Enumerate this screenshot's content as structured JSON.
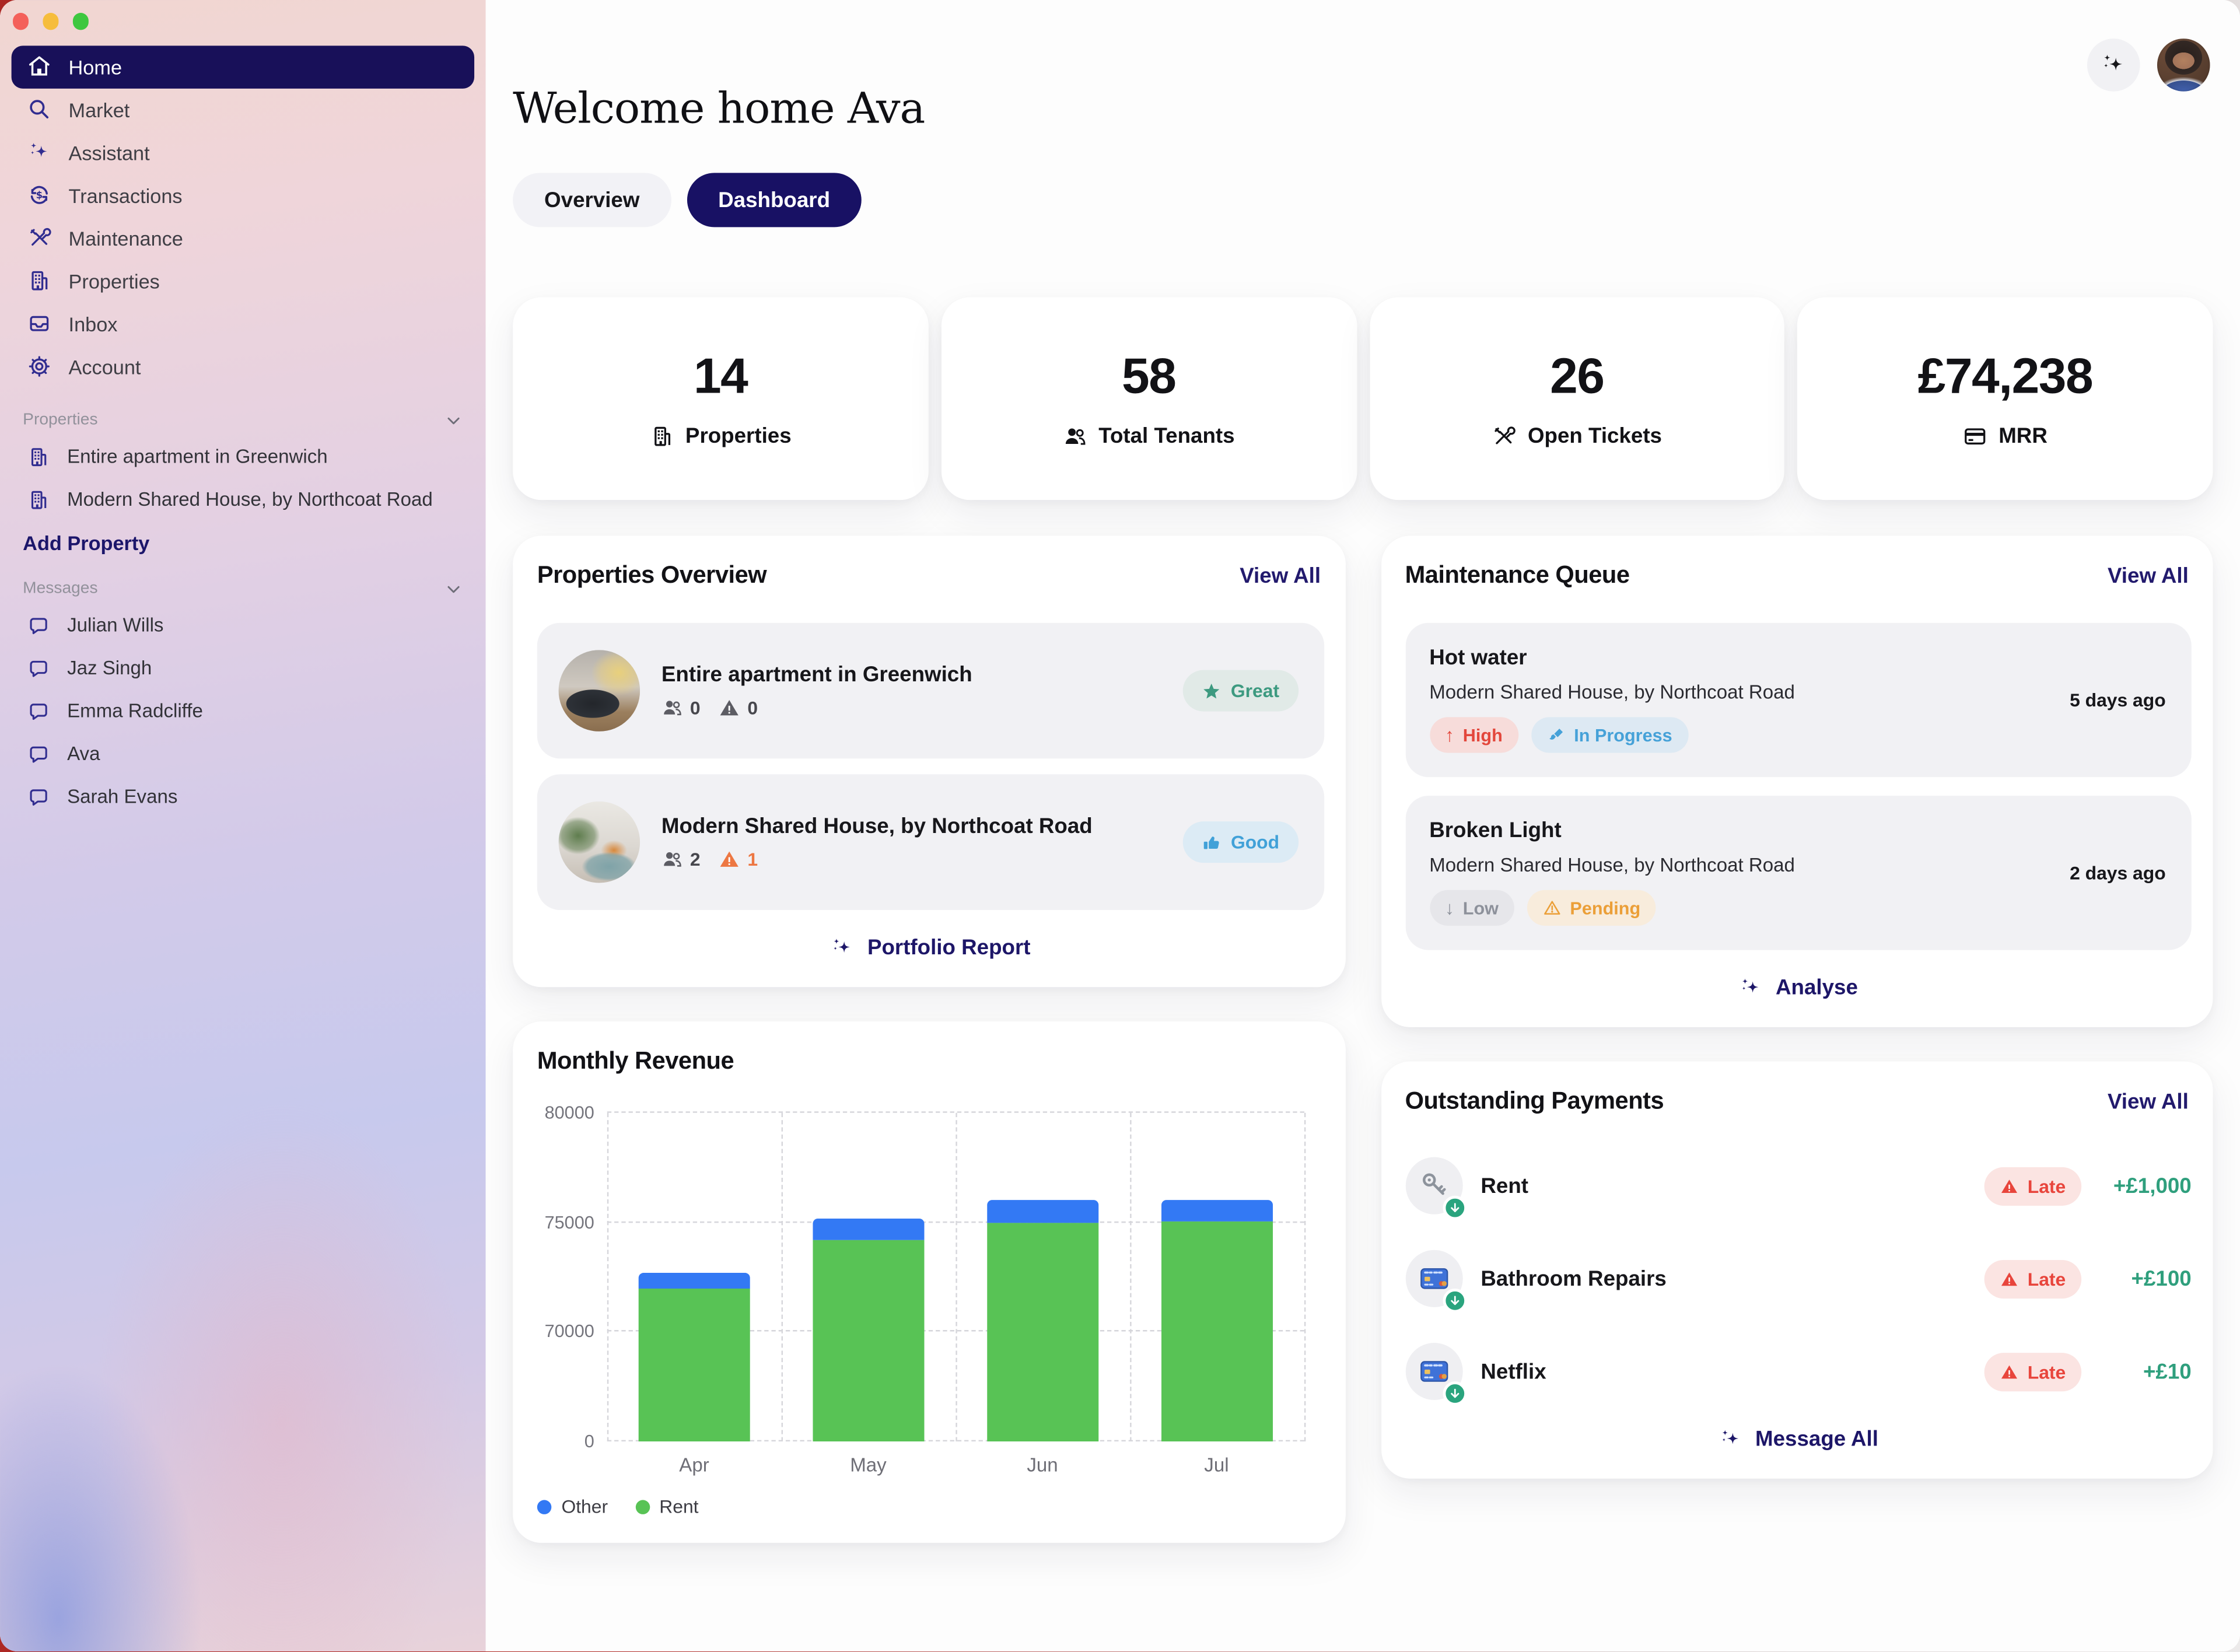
{
  "window": {
    "controls": [
      "close",
      "minimize",
      "zoom"
    ]
  },
  "sidebar": {
    "nav": [
      {
        "label": "Home",
        "icon": "home-icon",
        "active": true
      },
      {
        "label": "Market",
        "icon": "search-icon"
      },
      {
        "label": "Assistant",
        "icon": "sparkles-icon"
      },
      {
        "label": "Transactions",
        "icon": "transactions-icon"
      },
      {
        "label": "Maintenance",
        "icon": "tools-icon"
      },
      {
        "label": "Properties",
        "icon": "building-icon"
      },
      {
        "label": "Inbox",
        "icon": "inbox-icon"
      },
      {
        "label": "Account",
        "icon": "gear-icon"
      }
    ],
    "properties_section": {
      "title": "Properties",
      "items": [
        {
          "label": "Entire apartment in Greenwich",
          "icon": "building-icon"
        },
        {
          "label": "Modern Shared House, by Northcoat Road",
          "icon": "building-icon"
        }
      ],
      "action": "Add Property"
    },
    "messages_section": {
      "title": "Messages",
      "items": [
        {
          "label": "Julian Wills",
          "icon": "chat-icon"
        },
        {
          "label": "Jaz Singh",
          "icon": "chat-icon"
        },
        {
          "label": "Emma Radcliffe",
          "icon": "chat-icon"
        },
        {
          "label": "Ava",
          "icon": "chat-icon"
        },
        {
          "label": "Sarah Evans",
          "icon": "chat-icon"
        }
      ]
    }
  },
  "header": {
    "title": "Welcome home Ava",
    "tabs": [
      {
        "label": "Overview",
        "active": false
      },
      {
        "label": "Dashboard",
        "active": true
      }
    ]
  },
  "stats": [
    {
      "value": "14",
      "label": "Properties",
      "icon": "building-icon"
    },
    {
      "value": "58",
      "label": "Total Tenants",
      "icon": "tenants-icon"
    },
    {
      "value": "26",
      "label": "Open Tickets",
      "icon": "tools-icon"
    },
    {
      "value": "£74,238",
      "label": "MRR",
      "icon": "credit-card-icon"
    }
  ],
  "properties_overview": {
    "title": "Properties Overview",
    "view_all": "View All",
    "items": [
      {
        "name": "Entire apartment in Greenwich",
        "tenants": "0",
        "alerts": "0",
        "alert_level": "none",
        "badge": {
          "label": "Great",
          "type": "great",
          "icon": "star-icon"
        }
      },
      {
        "name": "Modern Shared House, by Northcoat Road",
        "tenants": "2",
        "alerts": "1",
        "alert_level": "warning",
        "badge": {
          "label": "Good",
          "type": "good",
          "icon": "thumbs-up-icon"
        }
      }
    ],
    "footer_action": "Portfolio Report"
  },
  "maintenance_queue": {
    "title": "Maintenance Queue",
    "view_all": "View All",
    "items": [
      {
        "title": "Hot water",
        "property": "Modern Shared House, by Northcoat Road",
        "time": "5 days ago",
        "priority": {
          "label": "High",
          "arrow": "↑",
          "type": "high"
        },
        "status": {
          "label": "In Progress",
          "type": "progress",
          "icon": "paintbrush-icon"
        }
      },
      {
        "title": "Broken Light",
        "property": "Modern Shared House, by Northcoat Road",
        "time": "2 days ago",
        "priority": {
          "label": "Low",
          "arrow": "↓",
          "type": "low"
        },
        "status": {
          "label": "Pending",
          "type": "pending",
          "icon": "warning-icon"
        }
      }
    ],
    "footer_action": "Analyse"
  },
  "chart_data": {
    "type": "bar",
    "stacked": true,
    "title": "Monthly Revenue",
    "categories": [
      "Apr",
      "May",
      "Jun",
      "Jul"
    ],
    "series": [
      {
        "name": "Rent",
        "color": "#58c355",
        "values": [
          72000,
          74200,
          74950,
          75050
        ]
      },
      {
        "name": "Other",
        "color": "#3379f4",
        "values": [
          700,
          950,
          1050,
          1000
        ]
      }
    ],
    "y_ticks": [
      0,
      70000,
      75000,
      80000
    ],
    "y_axis_note": "tick marks evenly spaced (compressed non-linear scale)",
    "xlabel": "",
    "ylabel": "",
    "grid": "dashed horizontal and vertical",
    "legend": [
      {
        "label": "Other",
        "color": "#3379f4"
      },
      {
        "label": "Rent",
        "color": "#58c355"
      }
    ],
    "legend_position": "bottom-left"
  },
  "outstanding_payments": {
    "title": "Outstanding Payments",
    "view_all": "View All",
    "items": [
      {
        "label": "Rent",
        "icon": "keys-icon",
        "status": "Late",
        "amount": "+£1,000"
      },
      {
        "label": "Bathroom Repairs",
        "icon": "credit-card-icon",
        "status": "Late",
        "amount": "+£100"
      },
      {
        "label": "Netflix",
        "icon": "credit-card-icon",
        "status": "Late",
        "amount": "+£10"
      }
    ],
    "footer_action": "Message All"
  },
  "colors": {
    "brand_navy": "#181164",
    "link_navy": "#221a6d",
    "sidebar_icon_indigo": "#312d90",
    "bar_green": "#58c355",
    "bar_blue": "#3379f4",
    "amount_teal": "#2f9f7d",
    "high_red": "#e3473c",
    "pending_orange": "#eb9f38",
    "progress_blue": "#45a1d8",
    "great_teal": "#3d9a80",
    "good_blue": "#41a1d8",
    "late_red": "#e8453c"
  }
}
